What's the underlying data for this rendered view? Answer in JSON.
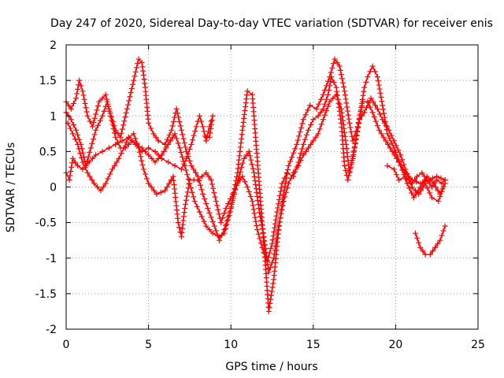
{
  "chart_data": {
    "type": "scatter",
    "title": "Day 247 of 2020, Sidereal Day-to-day VTEC variation (SDTVAR) for receiver enis",
    "xlabel": "GPS time / hours",
    "ylabel": "SDTVAR / TECUs",
    "xlim": [
      0,
      25
    ],
    "ylim": [
      -2,
      2
    ],
    "xticks": [
      0,
      5,
      10,
      15,
      20,
      25
    ],
    "yticks": [
      -2,
      -1.5,
      -1,
      -0.5,
      0,
      0.5,
      1,
      1.5,
      2
    ],
    "xtick_labels": [
      "0",
      "5",
      "10",
      "15",
      "20",
      "25"
    ],
    "ytick_labels": [
      "-2",
      "-1.5",
      "-1",
      "-0.5",
      "0",
      "0.5",
      "1",
      "1.5",
      "2"
    ],
    "grid": true,
    "marker": "+",
    "color": "#ff0000",
    "series": [
      {
        "name": "track-1",
        "points": [
          [
            0,
            1.2
          ],
          [
            0.3,
            1.1
          ],
          [
            0.6,
            1.25
          ],
          [
            0.8,
            1.5
          ],
          [
            1.0,
            1.35
          ],
          [
            1.3,
            1.0
          ],
          [
            1.6,
            0.85
          ],
          [
            2.0,
            1.2
          ],
          [
            2.4,
            1.3
          ],
          [
            2.6,
            1.1
          ],
          [
            3.0,
            0.8
          ],
          [
            3.3,
            0.7
          ],
          [
            3.7,
            1.1
          ],
          [
            4.1,
            1.5
          ],
          [
            4.4,
            1.8
          ],
          [
            4.6,
            1.75
          ],
          [
            4.8,
            1.4
          ],
          [
            5.0,
            0.9
          ],
          [
            5.3,
            0.75
          ],
          [
            5.6,
            0.65
          ],
          [
            6.0,
            0.6
          ],
          [
            6.4,
            0.8
          ],
          [
            6.7,
            1.1
          ],
          [
            7.0,
            0.8
          ],
          [
            7.3,
            0.5
          ],
          [
            7.6,
            0.3
          ],
          [
            8.0,
            0.15
          ],
          [
            8.3,
            -0.1
          ],
          [
            8.6,
            -0.3
          ],
          [
            9.0,
            -0.55
          ],
          [
            9.3,
            -0.75
          ],
          [
            9.6,
            -0.6
          ],
          [
            10.0,
            -0.3
          ],
          [
            10.4,
            0.2
          ],
          [
            10.7,
            0.8
          ],
          [
            11.0,
            1.35
          ],
          [
            11.3,
            1.3
          ],
          [
            11.5,
            0.7
          ],
          [
            11.8,
            -0.2
          ],
          [
            12.1,
            -1.1
          ],
          [
            12.3,
            -1.75
          ],
          [
            12.6,
            -1.3
          ],
          [
            12.9,
            -0.6
          ],
          [
            13.2,
            -0.1
          ],
          [
            13.5,
            0.3
          ],
          [
            14.0,
            0.6
          ],
          [
            14.4,
            0.95
          ],
          [
            14.8,
            1.15
          ],
          [
            15.2,
            1.1
          ],
          [
            15.6,
            1.3
          ],
          [
            16.0,
            1.55
          ],
          [
            16.3,
            1.8
          ],
          [
            16.6,
            1.7
          ],
          [
            16.9,
            1.35
          ],
          [
            17.2,
            0.9
          ],
          [
            17.4,
            0.65
          ],
          [
            17.7,
            0.85
          ],
          [
            18.0,
            1.2
          ],
          [
            18.3,
            1.2
          ],
          [
            18.6,
            1.05
          ],
          [
            19.0,
            0.8
          ],
          [
            19.4,
            0.65
          ],
          [
            19.8,
            0.5
          ],
          [
            20.2,
            0.35
          ],
          [
            20.6,
            0.2
          ],
          [
            21.0,
            0.1
          ],
          [
            21.5,
            0.05
          ],
          [
            22.0,
            0.1
          ],
          [
            22.5,
            0.15
          ],
          [
            23.0,
            0.1
          ]
        ]
      },
      {
        "name": "track-2",
        "points": [
          [
            0.1,
            0.9
          ],
          [
            0.4,
            0.75
          ],
          [
            0.7,
            0.6
          ],
          [
            1.0,
            0.35
          ],
          [
            1.3,
            0.2
          ],
          [
            1.7,
            0.05
          ],
          [
            2.1,
            -0.05
          ],
          [
            2.4,
            0.05
          ],
          [
            2.8,
            0.25
          ],
          [
            3.2,
            0.4
          ],
          [
            3.5,
            0.55
          ],
          [
            3.8,
            0.7
          ],
          [
            4.1,
            0.75
          ],
          [
            4.4,
            0.55
          ],
          [
            4.7,
            0.25
          ],
          [
            5.0,
            0.05
          ],
          [
            5.5,
            -0.1
          ],
          [
            6.0,
            -0.05
          ],
          [
            6.5,
            0.15
          ],
          [
            6.8,
            -0.5
          ],
          [
            7.0,
            -0.7
          ],
          [
            7.2,
            -0.3
          ],
          [
            7.5,
            0.1
          ],
          [
            8.0,
            0.1
          ],
          [
            8.5,
            0.2
          ],
          [
            8.8,
            0.1
          ],
          [
            9.1,
            -0.2
          ],
          [
            9.4,
            -0.5
          ],
          [
            9.7,
            -0.3
          ],
          [
            10.1,
            -0.1
          ],
          [
            10.4,
            0.05
          ],
          [
            10.7,
            0.15
          ],
          [
            11.0,
            0.0
          ],
          [
            11.3,
            -0.2
          ],
          [
            11.6,
            -0.6
          ],
          [
            11.9,
            -0.85
          ],
          [
            12.2,
            -1.05
          ],
          [
            12.5,
            -0.8
          ],
          [
            12.8,
            -0.35
          ],
          [
            13.1,
            0.05
          ],
          [
            13.4,
            0.2
          ],
          [
            13.8,
            0.15
          ],
          [
            14.1,
            0.35
          ],
          [
            14.4,
            0.6
          ],
          [
            14.7,
            0.8
          ],
          [
            15.0,
            0.95
          ],
          [
            15.3,
            1.0
          ],
          [
            15.6,
            1.1
          ],
          [
            15.9,
            1.3
          ],
          [
            16.1,
            1.55
          ],
          [
            16.4,
            1.4
          ],
          [
            16.7,
            0.9
          ],
          [
            16.9,
            0.3
          ],
          [
            17.1,
            0.1
          ],
          [
            17.4,
            0.4
          ],
          [
            17.8,
            0.95
          ],
          [
            18.1,
            1.4
          ],
          [
            18.3,
            1.55
          ],
          [
            18.6,
            1.7
          ],
          [
            18.9,
            1.55
          ],
          [
            19.2,
            1.15
          ],
          [
            19.5,
            0.75
          ],
          [
            19.9,
            0.55
          ],
          [
            20.3,
            0.3
          ],
          [
            20.7,
            0.05
          ],
          [
            21.1,
            -0.15
          ],
          [
            21.5,
            0.0
          ],
          [
            21.9,
            0.15
          ],
          [
            22.3,
            0.05
          ],
          [
            22.7,
            -0.1
          ],
          [
            23.0,
            0.05
          ]
        ]
      },
      {
        "name": "track-3",
        "points": [
          [
            0.0,
            1.05
          ],
          [
            0.3,
            0.95
          ],
          [
            0.6,
            0.8
          ],
          [
            0.9,
            0.6
          ],
          [
            1.2,
            0.3
          ],
          [
            1.5,
            0.55
          ],
          [
            1.8,
            0.8
          ],
          [
            2.2,
            1.0
          ],
          [
            2.5,
            1.2
          ],
          [
            2.7,
            1.0
          ],
          [
            3.0,
            0.7
          ],
          [
            3.3,
            0.55
          ],
          [
            3.6,
            0.55
          ],
          [
            4.0,
            0.65
          ],
          [
            4.3,
            0.6
          ],
          [
            4.6,
            0.55
          ],
          [
            5.0,
            0.45
          ],
          [
            5.4,
            0.35
          ],
          [
            5.8,
            0.45
          ],
          [
            6.2,
            0.6
          ],
          [
            6.6,
            0.75
          ],
          [
            6.9,
            0.55
          ],
          [
            7.2,
            0.3
          ],
          [
            7.5,
            0.05
          ],
          [
            7.8,
            -0.2
          ],
          [
            8.1,
            -0.35
          ],
          [
            8.5,
            -0.55
          ],
          [
            8.9,
            -0.65
          ],
          [
            9.3,
            -0.7
          ],
          [
            9.6,
            -0.65
          ],
          [
            9.9,
            -0.4
          ],
          [
            10.2,
            -0.1
          ],
          [
            10.5,
            0.15
          ],
          [
            10.8,
            0.4
          ],
          [
            11.1,
            0.5
          ],
          [
            11.4,
            0.2
          ],
          [
            11.7,
            -0.3
          ],
          [
            12.0,
            -0.7
          ],
          [
            12.3,
            -1.2
          ],
          [
            12.6,
            -1.0
          ],
          [
            12.9,
            -0.55
          ],
          [
            13.2,
            -0.2
          ],
          [
            13.5,
            0.05
          ],
          [
            13.8,
            0.2
          ],
          [
            14.1,
            0.3
          ],
          [
            14.4,
            0.45
          ],
          [
            14.7,
            0.55
          ],
          [
            15.0,
            0.65
          ],
          [
            15.3,
            0.75
          ],
          [
            15.6,
            0.95
          ],
          [
            16.0,
            1.2
          ],
          [
            16.4,
            1.3
          ],
          [
            16.7,
            1.1
          ],
          [
            17.0,
            0.6
          ],
          [
            17.2,
            0.2
          ],
          [
            17.5,
            0.55
          ],
          [
            17.8,
            0.95
          ],
          [
            18.1,
            1.05
          ],
          [
            18.5,
            1.25
          ],
          [
            18.9,
            1.1
          ],
          [
            19.2,
            0.95
          ],
          [
            19.6,
            0.8
          ],
          [
            19.9,
            0.65
          ],
          [
            20.3,
            0.45
          ],
          [
            20.6,
            0.25
          ],
          [
            21.0,
            0.0
          ],
          [
            21.4,
            -0.1
          ],
          [
            21.8,
            0.05
          ],
          [
            22.2,
            -0.15
          ],
          [
            22.6,
            -0.2
          ],
          [
            22.9,
            0.0
          ]
        ]
      },
      {
        "name": "track-4",
        "points": [
          [
            0.0,
            0.2
          ],
          [
            0.2,
            0.1
          ],
          [
            0.4,
            0.4
          ],
          [
            0.7,
            0.3
          ],
          [
            1.0,
            0.25
          ],
          [
            1.4,
            0.35
          ],
          [
            1.8,
            0.45
          ],
          [
            2.2,
            0.5
          ],
          [
            2.6,
            0.55
          ],
          [
            3.0,
            0.6
          ],
          [
            3.4,
            0.65
          ],
          [
            3.8,
            0.7
          ],
          [
            4.2,
            0.6
          ],
          [
            4.6,
            0.5
          ],
          [
            5.0,
            0.55
          ],
          [
            5.4,
            0.5
          ],
          [
            5.8,
            0.4
          ],
          [
            6.2,
            0.35
          ],
          [
            6.6,
            0.3
          ],
          [
            7.0,
            0.25
          ],
          [
            7.3,
            0.4
          ],
          [
            7.6,
            0.6
          ],
          [
            7.9,
            0.85
          ],
          [
            8.1,
            1.0
          ],
          [
            8.3,
            0.85
          ],
          [
            8.5,
            0.65
          ],
          [
            8.7,
            0.85
          ],
          [
            8.9,
            1.0
          ],
          [
            8.7,
            0.7
          ],
          [
            8.5,
            0.7
          ]
        ]
      },
      {
        "name": "track-5",
        "points": [
          [
            21.2,
            -0.65
          ],
          [
            21.5,
            -0.85
          ],
          [
            21.8,
            -0.95
          ],
          [
            22.1,
            -0.95
          ],
          [
            22.4,
            -0.85
          ],
          [
            22.7,
            -0.75
          ],
          [
            23.0,
            -0.55
          ]
        ]
      },
      {
        "name": "track-6",
        "points": [
          [
            19.5,
            0.3
          ],
          [
            19.9,
            0.25
          ],
          [
            20.2,
            0.1
          ],
          [
            20.6,
            0.15
          ],
          [
            21.0,
            0.05
          ],
          [
            21.3,
            0.15
          ],
          [
            21.6,
            0.2
          ],
          [
            21.9,
            0.1
          ],
          [
            22.2,
            0.0
          ],
          [
            22.5,
            0.1
          ],
          [
            22.8,
            0.05
          ],
          [
            23.0,
            0.1
          ]
        ]
      }
    ]
  }
}
